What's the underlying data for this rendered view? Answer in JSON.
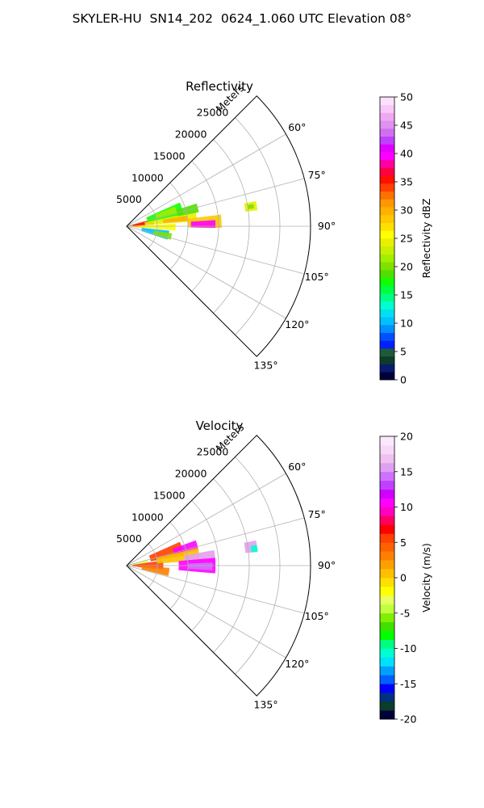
{
  "figure": {
    "suptitle": "SKYLER-HU  SN14_202  0624_1.060 UTC Elevation 08°"
  },
  "chart_data": [
    {
      "type": "polar-sector",
      "title": "Reflectivity",
      "range_label": "Meters",
      "theta_range_deg": [
        45,
        135
      ],
      "r_max": 30000,
      "r_ticks": [
        5000,
        10000,
        15000,
        20000,
        25000
      ],
      "theta_ticks_deg": [
        60,
        75,
        90,
        105,
        120,
        135
      ],
      "grid": true,
      "colorbar": {
        "label": "Reflectivity dBZ",
        "range": [
          0,
          50
        ],
        "ticks": [
          0,
          5,
          10,
          15,
          20,
          25,
          30,
          35,
          40,
          45,
          50
        ]
      },
      "echo_regions": [
        {
          "theta": [
            73,
            96
          ],
          "r": [
            0,
            3000
          ],
          "value": 30
        },
        {
          "theta": [
            76,
            86
          ],
          "r": [
            1000,
            4500
          ],
          "value": 35
        },
        {
          "theta": [
            66,
            80
          ],
          "r": [
            3500,
            9500
          ],
          "value": 17
        },
        {
          "theta": [
            68,
            76
          ],
          "r": [
            5000,
            8500
          ],
          "value": 22
        },
        {
          "theta": [
            78,
            86
          ],
          "r": [
            3000,
            11500
          ],
          "value": 24
        },
        {
          "theta": [
            80,
            85
          ],
          "r": [
            6000,
            10000
          ],
          "value": 30
        },
        {
          "theta": [
            83,
            91
          ],
          "r": [
            10000,
            15500
          ],
          "value": 28
        },
        {
          "theta": [
            86,
            91
          ],
          "r": [
            10500,
            14500
          ],
          "value": 40
        },
        {
          "theta": [
            87,
            95
          ],
          "r": [
            2000,
            8000
          ],
          "value": 26
        },
        {
          "theta": [
            96,
            108
          ],
          "r": [
            2500,
            7000
          ],
          "value": 11
        },
        {
          "theta": [
            99,
            107
          ],
          "r": [
            4500,
            7500
          ],
          "value": 20
        },
        {
          "theta": [
            72,
            79
          ],
          "r": [
            8500,
            12000
          ],
          "value": 19
        },
        {
          "theta": [
            79,
            83
          ],
          "r": [
            19500,
            21500
          ],
          "value": 24
        },
        {
          "theta": [
            80,
            82
          ],
          "r": [
            20000,
            21000
          ],
          "value": 20
        }
      ]
    },
    {
      "type": "polar-sector",
      "title": "Velocity",
      "range_label": "Meters",
      "theta_range_deg": [
        45,
        135
      ],
      "r_max": 30000,
      "r_ticks": [
        5000,
        10000,
        15000,
        20000,
        25000
      ],
      "theta_ticks_deg": [
        60,
        75,
        90,
        105,
        120,
        135
      ],
      "grid": true,
      "colorbar": {
        "label": "Velocity (m/s)",
        "range": [
          -20,
          20
        ],
        "ticks": [
          -20,
          -15,
          -10,
          -5,
          0,
          5,
          10,
          15,
          20
        ]
      },
      "echo_regions": [
        {
          "theta": [
            73,
            92
          ],
          "r": [
            0,
            3500
          ],
          "value": -3
        },
        {
          "theta": [
            82,
            97
          ],
          "r": [
            1000,
            6000
          ],
          "value": 5
        },
        {
          "theta": [
            66,
            80
          ],
          "r": [
            4000,
            9500
          ],
          "value": 6
        },
        {
          "theta": [
            70,
            78
          ],
          "r": [
            8000,
            12000
          ],
          "value": 11
        },
        {
          "theta": [
            76,
            86
          ],
          "r": [
            5000,
            12000
          ],
          "value": 1
        },
        {
          "theta": [
            80,
            88
          ],
          "r": [
            9500,
            14500
          ],
          "value": 15
        },
        {
          "theta": [
            85,
            95
          ],
          "r": [
            8500,
            14500
          ],
          "value": 10
        },
        {
          "theta": [
            88,
            93
          ],
          "r": [
            10000,
            14000
          ],
          "value": 14
        },
        {
          "theta": [
            93,
            104
          ],
          "r": [
            2500,
            7000
          ],
          "value": 3
        },
        {
          "theta": [
            79,
            84
          ],
          "r": [
            19500,
            21500
          ],
          "value": 15
        },
        {
          "theta": [
            81,
            84
          ],
          "r": [
            20500,
            21500
          ],
          "value": -11
        }
      ]
    }
  ]
}
